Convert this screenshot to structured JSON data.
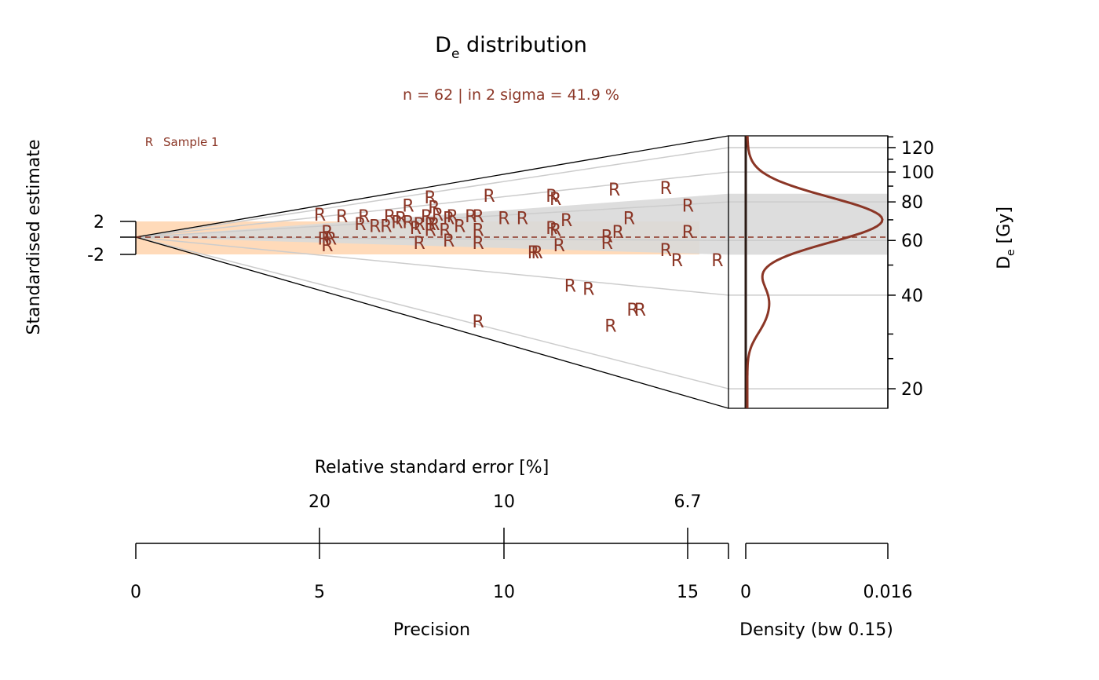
{
  "chart_data": {
    "type": "scatter",
    "title": "D",
    "title_sub": "e",
    "title_rest": " distribution",
    "subtitle": "n = 62 | in 2 sigma = 41.9 %",
    "legend": {
      "symbol": "R",
      "label": "Sample 1",
      "position": "top-left"
    },
    "y_left_label": "Standardised estimate",
    "y_left_ticks": [
      "2",
      "-2"
    ],
    "y_right_label_main": "D",
    "y_right_label_sub": "e",
    "y_right_label_rest": " [Gy]",
    "y_right_tick_labels": [
      120,
      100,
      80,
      60,
      40,
      20
    ],
    "y_right_minor_ticks": [
      130,
      110,
      90,
      70,
      50,
      30,
      25
    ],
    "precision_label": "Precision",
    "precision_ticks": [
      0,
      5,
      10,
      15
    ],
    "precision_range": [
      0,
      16.1
    ],
    "rse_label": "Relative standard error [%]",
    "rse_ticks": [
      "20",
      "10",
      "6.7"
    ],
    "density_label": "Density (bw 0.15)",
    "density_ticks": [
      "0",
      "0.016"
    ],
    "density_range": [
      0,
      0.016
    ],
    "central_value": 61.5,
    "de_range": [
      17.3,
      131
    ],
    "two_sigma_band": [
      54,
      85
    ],
    "colors": {
      "series": "#8B3626",
      "grey_band": "#d9d9d9",
      "orange_band": "#FFDAB9",
      "axis": "#000000",
      "grid": "#cccccc"
    },
    "points": [
      {
        "precision": 8.0,
        "de": 83
      },
      {
        "precision": 9.6,
        "de": 84
      },
      {
        "precision": 11.3,
        "de": 84
      },
      {
        "precision": 13.0,
        "de": 88
      },
      {
        "precision": 14.4,
        "de": 89
      },
      {
        "precision": 7.4,
        "de": 78
      },
      {
        "precision": 8.1,
        "de": 77
      },
      {
        "precision": 11.4,
        "de": 82
      },
      {
        "precision": 15.0,
        "de": 78
      },
      {
        "precision": 5.0,
        "de": 73
      },
      {
        "precision": 5.6,
        "de": 72
      },
      {
        "precision": 6.2,
        "de": 72
      },
      {
        "precision": 6.9,
        "de": 72
      },
      {
        "precision": 7.2,
        "de": 71
      },
      {
        "precision": 7.9,
        "de": 72
      },
      {
        "precision": 8.2,
        "de": 73
      },
      {
        "precision": 8.6,
        "de": 72
      },
      {
        "precision": 9.1,
        "de": 72
      },
      {
        "precision": 8.5,
        "de": 71
      },
      {
        "precision": 9.3,
        "de": 72
      },
      {
        "precision": 10.0,
        "de": 71
      },
      {
        "precision": 10.5,
        "de": 71
      },
      {
        "precision": 11.7,
        "de": 70
      },
      {
        "precision": 13.4,
        "de": 71
      },
      {
        "precision": 7.1,
        "de": 69
      },
      {
        "precision": 7.4,
        "de": 69
      },
      {
        "precision": 7.7,
        "de": 68
      },
      {
        "precision": 8.1,
        "de": 68
      },
      {
        "precision": 6.1,
        "de": 68
      },
      {
        "precision": 6.5,
        "de": 67
      },
      {
        "precision": 6.8,
        "de": 67
      },
      {
        "precision": 7.6,
        "de": 66
      },
      {
        "precision": 8.0,
        "de": 65
      },
      {
        "precision": 8.4,
        "de": 65
      },
      {
        "precision": 9.3,
        "de": 65
      },
      {
        "precision": 11.3,
        "de": 66
      },
      {
        "precision": 11.4,
        "de": 65
      },
      {
        "precision": 13.1,
        "de": 64
      },
      {
        "precision": 12.8,
        "de": 62
      },
      {
        "precision": 15.0,
        "de": 64
      },
      {
        "precision": 5.2,
        "de": 64
      },
      {
        "precision": 5.1,
        "de": 61
      },
      {
        "precision": 5.3,
        "de": 61
      },
      {
        "precision": 5.2,
        "de": 58
      },
      {
        "precision": 7.7,
        "de": 59
      },
      {
        "precision": 8.5,
        "de": 60
      },
      {
        "precision": 9.3,
        "de": 59
      },
      {
        "precision": 11.5,
        "de": 58
      },
      {
        "precision": 12.8,
        "de": 59
      },
      {
        "precision": 14.4,
        "de": 56
      },
      {
        "precision": 10.8,
        "de": 55
      },
      {
        "precision": 10.9,
        "de": 55
      },
      {
        "precision": 14.7,
        "de": 52
      },
      {
        "precision": 15.8,
        "de": 52
      },
      {
        "precision": 11.8,
        "de": 43
      },
      {
        "precision": 12.3,
        "de": 42
      },
      {
        "precision": 13.5,
        "de": 36
      },
      {
        "precision": 13.7,
        "de": 36
      },
      {
        "precision": 9.3,
        "de": 33
      },
      {
        "precision": 12.9,
        "de": 32
      },
      {
        "precision": 8.0,
        "de": 68
      },
      {
        "precision": 8.8,
        "de": 67
      }
    ]
  }
}
